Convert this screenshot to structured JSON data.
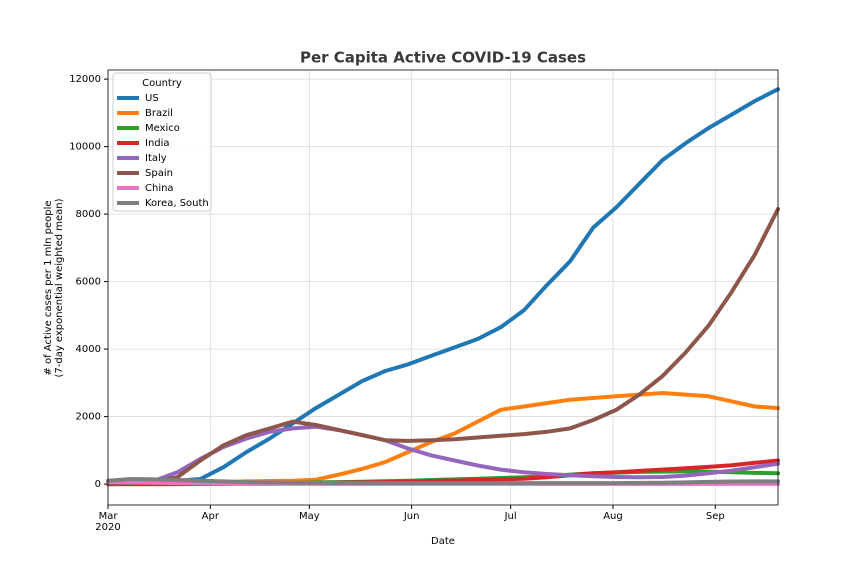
{
  "chart_data": {
    "type": "line",
    "title": "Per Capita Active COVID-19 Cases",
    "xlabel": "Date",
    "ylabel": [
      "# of Active cases per 1 mln people",
      "(7-day exponential weighted mean)"
    ],
    "x_year_label": "2020",
    "legend_title": "Country",
    "legend": "upper left",
    "grid": true,
    "x": [
      0,
      7,
      14,
      21,
      28,
      35,
      42,
      49,
      56,
      63,
      70,
      77,
      84,
      91,
      98,
      105,
      112,
      119,
      126,
      133,
      140,
      147,
      154,
      161,
      168,
      175,
      182,
      189,
      196,
      203
    ],
    "xlim": [
      0,
      203
    ],
    "xticks": [
      {
        "value": 0,
        "label": "Mar"
      },
      {
        "value": 31,
        "label": "Apr"
      },
      {
        "value": 61,
        "label": "May"
      },
      {
        "value": 92,
        "label": "Jun"
      },
      {
        "value": 122,
        "label": "Jul"
      },
      {
        "value": 153,
        "label": "Aug"
      },
      {
        "value": 184,
        "label": "Sep"
      }
    ],
    "ylim": [
      -620,
      12270
    ],
    "yticks": [
      0,
      2000,
      4000,
      6000,
      8000,
      10000,
      12000
    ],
    "series": [
      {
        "name": "US",
        "color": "#1f77b4",
        "values": [
          0,
          10,
          40,
          100,
          150,
          500,
          950,
          1350,
          1800,
          2250,
          2650,
          3050,
          3350,
          3550,
          3800,
          4050,
          4300,
          4650,
          5150,
          5900,
          6600,
          7600,
          8200,
          8900,
          9600,
          10100,
          10550,
          10950,
          11350,
          11700
        ]
      },
      {
        "name": "Brazil",
        "color": "#ff7f0e",
        "values": [
          0,
          5,
          10,
          20,
          40,
          60,
          80,
          90,
          100,
          130,
          280,
          450,
          650,
          950,
          1250,
          1500,
          1850,
          2200,
          2300,
          2400,
          2500,
          2550,
          2600,
          2650,
          2700,
          2650,
          2600,
          2450,
          2300,
          2250
        ]
      },
      {
        "name": "Mexico",
        "color": "#2ca02c",
        "values": [
          0,
          0,
          0,
          5,
          10,
          15,
          20,
          30,
          40,
          50,
          60,
          70,
          85,
          100,
          120,
          140,
          160,
          180,
          200,
          230,
          280,
          320,
          340,
          360,
          370,
          380,
          370,
          350,
          330,
          320
        ]
      },
      {
        "name": "India",
        "color": "#d62728",
        "values": [
          0,
          0,
          0,
          0,
          2,
          5,
          8,
          12,
          20,
          30,
          40,
          50,
          60,
          75,
          90,
          105,
          120,
          140,
          160,
          200,
          260,
          320,
          350,
          390,
          430,
          470,
          510,
          560,
          630,
          700
        ]
      },
      {
        "name": "Italy",
        "color": "#9467bd",
        "values": [
          20,
          50,
          100,
          350,
          750,
          1100,
          1350,
          1550,
          1650,
          1700,
          1600,
          1450,
          1300,
          1050,
          850,
          700,
          550,
          430,
          350,
          300,
          260,
          230,
          210,
          200,
          210,
          250,
          320,
          400,
          500,
          600
        ]
      },
      {
        "name": "Spain",
        "color": "#8c564b",
        "values": [
          0,
          30,
          80,
          200,
          700,
          1150,
          1450,
          1650,
          1850,
          1750,
          1600,
          1450,
          1300,
          1280,
          1300,
          1330,
          1380,
          1430,
          1480,
          1550,
          1650,
          1900,
          2200,
          2650,
          3200,
          3900,
          4700,
          5700,
          6800,
          8150
        ]
      },
      {
        "name": "China",
        "color": "#e377c2",
        "values": [
          60,
          50,
          40,
          30,
          20,
          15,
          10,
          8,
          6,
          5,
          5,
          5,
          5,
          5,
          5,
          5,
          5,
          5,
          5,
          5,
          5,
          5,
          5,
          5,
          5,
          5,
          5,
          5,
          5,
          5
        ]
      },
      {
        "name": "Korea, South",
        "color": "#7f7f7f",
        "values": [
          100,
          150,
          140,
          120,
          100,
          80,
          60,
          50,
          40,
          35,
          30,
          30,
          30,
          30,
          30,
          30,
          30,
          30,
          30,
          30,
          30,
          30,
          30,
          35,
          40,
          50,
          65,
          75,
          80,
          80
        ]
      }
    ]
  }
}
